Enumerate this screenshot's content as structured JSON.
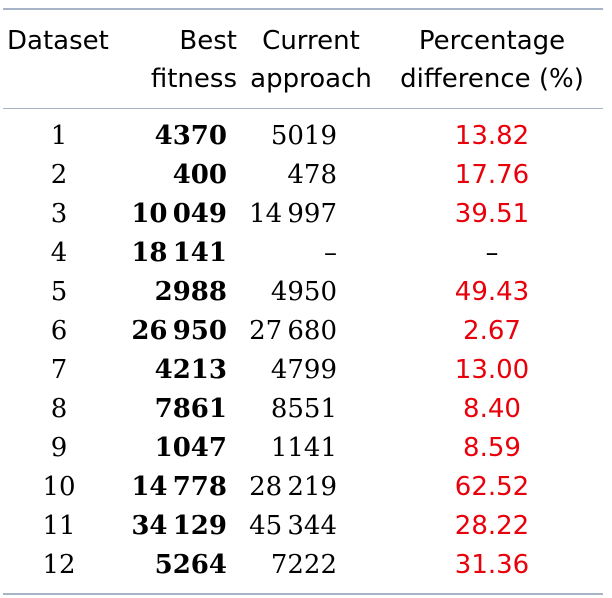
{
  "table": {
    "headers": [
      [
        "Dataset",
        "Best",
        "Current",
        "Percentage"
      ],
      [
        "",
        "fitness",
        "approach",
        "difference (%)"
      ]
    ],
    "rows": [
      [
        "1",
        "4370",
        "5019",
        "13.82"
      ],
      [
        "2",
        "400",
        "478",
        "17.76"
      ],
      [
        "3",
        "10 049",
        "14 997",
        "39.51"
      ],
      [
        "4",
        "18 141",
        "–",
        "–"
      ],
      [
        "5",
        "2988",
        "4950",
        "49.43"
      ],
      [
        "6",
        "26 950",
        "27 680",
        "2.67"
      ],
      [
        "7",
        "4213",
        "4799",
        "13.00"
      ],
      [
        "8",
        "7861",
        "8551",
        "8.40"
      ],
      [
        "9",
        "1047",
        "1141",
        "8.59"
      ],
      [
        "10",
        "14 778",
        "28 219",
        "62.52"
      ],
      [
        "11",
        "34 129",
        "45 344",
        "28.22"
      ],
      [
        "12",
        "5264",
        "7222",
        "31.36"
      ]
    ]
  },
  "colors": {
    "rule": "#a7b4c8",
    "difference": "#e8000b"
  }
}
